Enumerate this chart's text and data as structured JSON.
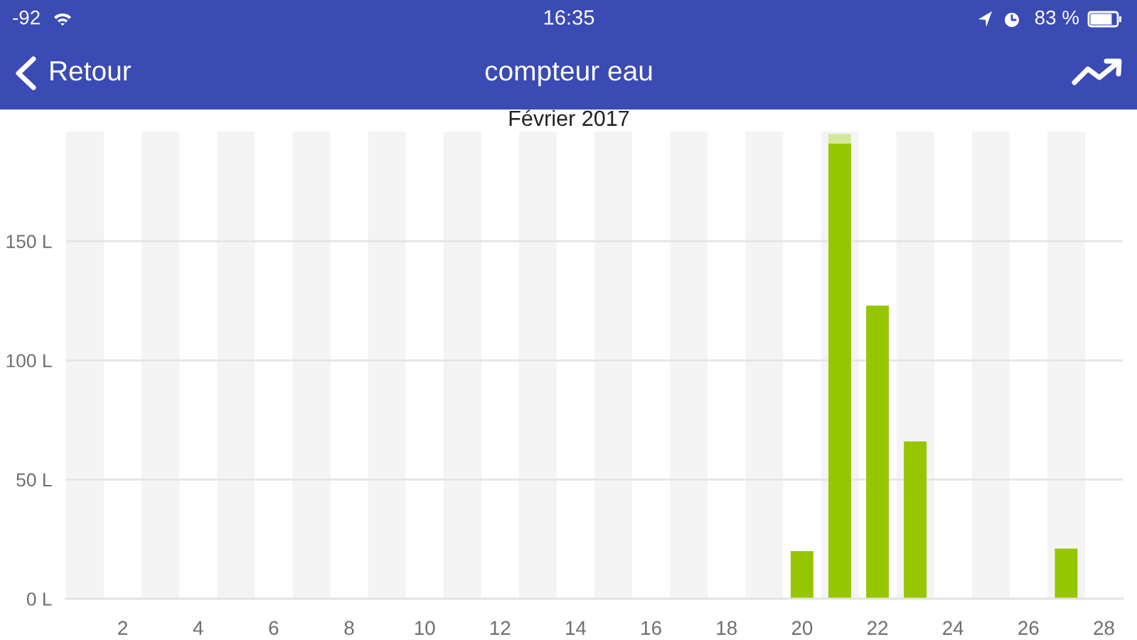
{
  "chart_data": {
    "type": "bar",
    "title": "compteur eau",
    "subtitle": "Février 2017",
    "annotations": [
      "-92",
      "16:35",
      "83 %",
      "Retour"
    ],
    "x": [
      20,
      21,
      22,
      23,
      27
    ],
    "stacked": true,
    "series": [
      {
        "color": "#95c600",
        "values": [
          20,
          191,
          123,
          66,
          21
        ]
      },
      {
        "color": "#d3e89b",
        "values": [
          null,
          4,
          null,
          null,
          null
        ]
      }
    ],
    "xlim": [
      0.5,
      28.5
    ],
    "xticks": [
      2,
      4,
      6,
      8,
      10,
      12,
      14,
      16,
      18,
      20,
      22,
      24,
      26,
      28
    ],
    "ylim": [
      0,
      196
    ],
    "yticks": [
      {
        "value": 0,
        "label": "0 L"
      },
      {
        "value": 50,
        "label": "50 L"
      },
      {
        "value": 100,
        "label": "100 L"
      },
      {
        "value": 150,
        "label": "150 L"
      }
    ],
    "grid": "y",
    "bands": [
      {
        "axis": "x",
        "from": 0.5,
        "to": 1.5,
        "color": "#f4f4f4"
      },
      {
        "axis": "x",
        "from": 2.5,
        "to": 3.5,
        "color": "#f4f4f4"
      },
      {
        "axis": "x",
        "from": 4.5,
        "to": 5.5,
        "color": "#f4f4f4"
      },
      {
        "axis": "x",
        "from": 6.5,
        "to": 7.5,
        "color": "#f4f4f4"
      },
      {
        "axis": "x",
        "from": 8.5,
        "to": 9.5,
        "color": "#f4f4f4"
      },
      {
        "axis": "x",
        "from": 10.5,
        "to": 11.5,
        "color": "#f4f4f4"
      },
      {
        "axis": "x",
        "from": 12.5,
        "to": 13.5,
        "color": "#f4f4f4"
      },
      {
        "axis": "x",
        "from": 14.5,
        "to": 15.5,
        "color": "#f4f4f4"
      },
      {
        "axis": "x",
        "from": 16.5,
        "to": 17.5,
        "color": "#f4f4f4"
      },
      {
        "axis": "x",
        "from": 18.5,
        "to": 19.5,
        "color": "#f4f4f4"
      },
      {
        "axis": "x",
        "from": 20.5,
        "to": 21.5,
        "color": "#f4f4f4"
      },
      {
        "axis": "x",
        "from": 22.5,
        "to": 23.5,
        "color": "#f4f4f4"
      },
      {
        "axis": "x",
        "from": 24.5,
        "to": 25.5,
        "color": "#f4f4f4"
      },
      {
        "axis": "x",
        "from": 26.5,
        "to": 27.5,
        "color": "#f4f4f4"
      }
    ]
  }
}
